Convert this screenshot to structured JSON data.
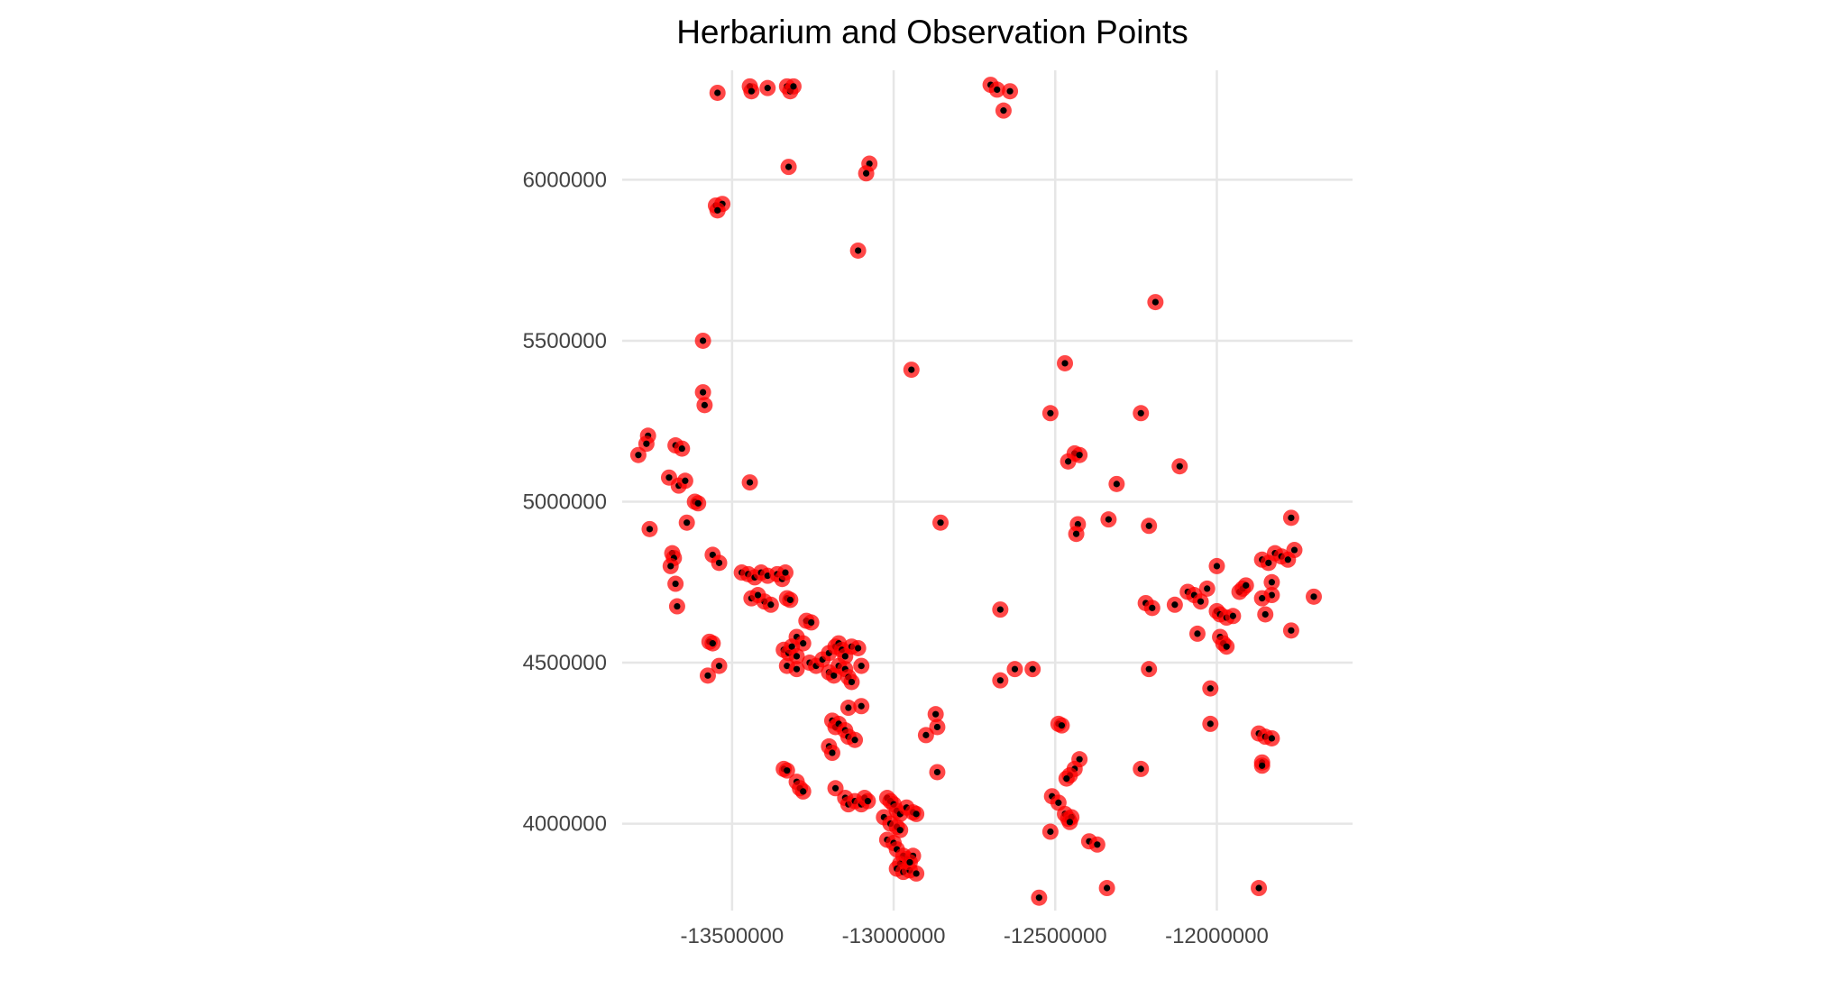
{
  "chart_data": {
    "type": "scatter",
    "title": "Herbarium and Observation Points",
    "xlabel": "",
    "ylabel": "",
    "xlim": [
      -13840000,
      -11580000
    ],
    "ylim": [
      3730000,
      6340000
    ],
    "x_ticks": [
      -13500000,
      -13000000,
      -12500000,
      -12000000
    ],
    "y_ticks": [
      4000000,
      4500000,
      5000000,
      5500000,
      6000000
    ],
    "x_tick_labels": [
      "-13500000",
      "-13000000",
      "-12500000",
      "-12000000"
    ],
    "y_tick_labels": [
      "4000000",
      "4500000",
      "5000000",
      "5500000",
      "6000000"
    ],
    "grid": true,
    "legend": "none",
    "colors": {
      "outer": "#ff0000",
      "inner": "#000000",
      "grid": "#e6e6e6"
    },
    "points": [
      [
        -13545000,
        6270000
      ],
      [
        -13445000,
        6290000
      ],
      [
        -13440000,
        6275000
      ],
      [
        -13390000,
        6285000
      ],
      [
        -13330000,
        6290000
      ],
      [
        -13320000,
        6275000
      ],
      [
        -13310000,
        6290000
      ],
      [
        -13325000,
        6040000
      ],
      [
        -12700000,
        6295000
      ],
      [
        -12680000,
        6280000
      ],
      [
        -12640000,
        6275000
      ],
      [
        -12660000,
        6215000
      ],
      [
        -13075000,
        6050000
      ],
      [
        -13085000,
        6020000
      ],
      [
        -13550000,
        5920000
      ],
      [
        -13530000,
        5925000
      ],
      [
        -13545000,
        5905000
      ],
      [
        -13110000,
        5780000
      ],
      [
        -12190000,
        5620000
      ],
      [
        -13590000,
        5500000
      ],
      [
        -12945000,
        5410000
      ],
      [
        -12470000,
        5430000
      ],
      [
        -13590000,
        5340000
      ],
      [
        -13585000,
        5300000
      ],
      [
        -12515000,
        5275000
      ],
      [
        -12235000,
        5275000
      ],
      [
        -13760000,
        5205000
      ],
      [
        -13765000,
        5180000
      ],
      [
        -13790000,
        5145000
      ],
      [
        -13675000,
        5175000
      ],
      [
        -13655000,
        5165000
      ],
      [
        -12440000,
        5150000
      ],
      [
        -12425000,
        5145000
      ],
      [
        -12460000,
        5125000
      ],
      [
        -12115000,
        5110000
      ],
      [
        -13695000,
        5075000
      ],
      [
        -13665000,
        5050000
      ],
      [
        -13645000,
        5065000
      ],
      [
        -13445000,
        5060000
      ],
      [
        -12310000,
        5055000
      ],
      [
        -13615000,
        5000000
      ],
      [
        -13605000,
        4995000
      ],
      [
        -12335000,
        4945000
      ],
      [
        -13640000,
        4935000
      ],
      [
        -13755000,
        4915000
      ],
      [
        -12855000,
        4935000
      ],
      [
        -12430000,
        4930000
      ],
      [
        -12435000,
        4900000
      ],
      [
        -12210000,
        4925000
      ],
      [
        -13685000,
        4840000
      ],
      [
        -13680000,
        4825000
      ],
      [
        -13690000,
        4800000
      ],
      [
        -13560000,
        4835000
      ],
      [
        -13540000,
        4810000
      ],
      [
        -13470000,
        4780000
      ],
      [
        -13450000,
        4775000
      ],
      [
        -13430000,
        4765000
      ],
      [
        -13410000,
        4780000
      ],
      [
        -13390000,
        4770000
      ],
      [
        -13360000,
        4775000
      ],
      [
        -13345000,
        4760000
      ],
      [
        -13335000,
        4780000
      ],
      [
        -13440000,
        4700000
      ],
      [
        -13400000,
        4690000
      ],
      [
        -13420000,
        4710000
      ],
      [
        -13380000,
        4680000
      ],
      [
        -13330000,
        4700000
      ],
      [
        -13320000,
        4695000
      ],
      [
        -13675000,
        4745000
      ],
      [
        -13670000,
        4675000
      ],
      [
        -13270000,
        4630000
      ],
      [
        -13255000,
        4625000
      ],
      [
        -13300000,
        4580000
      ],
      [
        -13280000,
        4560000
      ],
      [
        -13340000,
        4540000
      ],
      [
        -13325000,
        4530000
      ],
      [
        -13315000,
        4550000
      ],
      [
        -13300000,
        4520000
      ],
      [
        -13260000,
        4500000
      ],
      [
        -13240000,
        4490000
      ],
      [
        -13220000,
        4510000
      ],
      [
        -13200000,
        4530000
      ],
      [
        -13180000,
        4550000
      ],
      [
        -13170000,
        4560000
      ],
      [
        -13160000,
        4540000
      ],
      [
        -13150000,
        4520000
      ],
      [
        -13130000,
        4550000
      ],
      [
        -13110000,
        4545000
      ],
      [
        -13100000,
        4490000
      ],
      [
        -13200000,
        4470000
      ],
      [
        -13185000,
        4460000
      ],
      [
        -13170000,
        4490000
      ],
      [
        -13150000,
        4480000
      ],
      [
        -13140000,
        4455000
      ],
      [
        -13130000,
        4440000
      ],
      [
        -13570000,
        4565000
      ],
      [
        -13560000,
        4560000
      ],
      [
        -13575000,
        4460000
      ],
      [
        -13540000,
        4490000
      ],
      [
        -13330000,
        4490000
      ],
      [
        -13300000,
        4480000
      ],
      [
        -13140000,
        4360000
      ],
      [
        -13100000,
        4365000
      ],
      [
        -13190000,
        4320000
      ],
      [
        -13180000,
        4300000
      ],
      [
        -13170000,
        4310000
      ],
      [
        -13150000,
        4290000
      ],
      [
        -13140000,
        4270000
      ],
      [
        -13120000,
        4260000
      ],
      [
        -13200000,
        4240000
      ],
      [
        -13190000,
        4220000
      ],
      [
        -12870000,
        4340000
      ],
      [
        -12865000,
        4300000
      ],
      [
        -12900000,
        4275000
      ],
      [
        -12865000,
        4160000
      ],
      [
        -12670000,
        4665000
      ],
      [
        -12670000,
        4445000
      ],
      [
        -12625000,
        4480000
      ],
      [
        -12570000,
        4480000
      ],
      [
        -12490000,
        4310000
      ],
      [
        -12480000,
        4305000
      ],
      [
        -12425000,
        4200000
      ],
      [
        -12440000,
        4170000
      ],
      [
        -12455000,
        4150000
      ],
      [
        -12465000,
        4140000
      ],
      [
        -12510000,
        4085000
      ],
      [
        -12490000,
        4065000
      ],
      [
        -12470000,
        4030000
      ],
      [
        -12460000,
        4015000
      ],
      [
        -12450000,
        4020000
      ],
      [
        -12455000,
        4005000
      ],
      [
        -12515000,
        3975000
      ],
      [
        -12395000,
        3945000
      ],
      [
        -12370000,
        3935000
      ],
      [
        -12340000,
        3800000
      ],
      [
        -12550000,
        3770000
      ],
      [
        -12235000,
        4170000
      ],
      [
        -12210000,
        4480000
      ],
      [
        -12220000,
        4685000
      ],
      [
        -12200000,
        4670000
      ],
      [
        -12130000,
        4680000
      ],
      [
        -12090000,
        4720000
      ],
      [
        -12070000,
        4710000
      ],
      [
        -12050000,
        4690000
      ],
      [
        -12030000,
        4730000
      ],
      [
        -12000000,
        4800000
      ],
      [
        -12000000,
        4660000
      ],
      [
        -11990000,
        4650000
      ],
      [
        -11970000,
        4640000
      ],
      [
        -11950000,
        4645000
      ],
      [
        -11930000,
        4720000
      ],
      [
        -11920000,
        4730000
      ],
      [
        -11910000,
        4740000
      ],
      [
        -11990000,
        4580000
      ],
      [
        -11980000,
        4560000
      ],
      [
        -11970000,
        4550000
      ],
      [
        -12060000,
        4590000
      ],
      [
        -12020000,
        4420000
      ],
      [
        -12020000,
        4310000
      ],
      [
        -11860000,
        4820000
      ],
      [
        -11840000,
        4810000
      ],
      [
        -11820000,
        4840000
      ],
      [
        -11800000,
        4830000
      ],
      [
        -11780000,
        4820000
      ],
      [
        -11760000,
        4850000
      ],
      [
        -11770000,
        4950000
      ],
      [
        -11830000,
        4750000
      ],
      [
        -11830000,
        4710000
      ],
      [
        -11860000,
        4700000
      ],
      [
        -11850000,
        4650000
      ],
      [
        -11770000,
        4600000
      ],
      [
        -11700000,
        4705000
      ],
      [
        -11870000,
        4280000
      ],
      [
        -11850000,
        4270000
      ],
      [
        -11830000,
        4265000
      ],
      [
        -11860000,
        4190000
      ],
      [
        -11860000,
        4180000
      ],
      [
        -11870000,
        3800000
      ],
      [
        -13340000,
        4170000
      ],
      [
        -13330000,
        4165000
      ],
      [
        -13300000,
        4130000
      ],
      [
        -13290000,
        4110000
      ],
      [
        -13280000,
        4100000
      ],
      [
        -13180000,
        4110000
      ],
      [
        -13150000,
        4080000
      ],
      [
        -13140000,
        4060000
      ],
      [
        -13120000,
        4070000
      ],
      [
        -13100000,
        4060000
      ],
      [
        -13090000,
        4080000
      ],
      [
        -13080000,
        4070000
      ],
      [
        -13020000,
        4080000
      ],
      [
        -13010000,
        4070000
      ],
      [
        -13000000,
        4060000
      ],
      [
        -12990000,
        4040000
      ],
      [
        -12980000,
        4030000
      ],
      [
        -12960000,
        4050000
      ],
      [
        -12940000,
        4035000
      ],
      [
        -12930000,
        4030000
      ],
      [
        -13030000,
        4020000
      ],
      [
        -13010000,
        4000000
      ],
      [
        -12990000,
        3990000
      ],
      [
        -12980000,
        3980000
      ],
      [
        -13020000,
        3950000
      ],
      [
        -13000000,
        3940000
      ],
      [
        -12990000,
        3920000
      ],
      [
        -12970000,
        3900000
      ],
      [
        -12960000,
        3890000
      ],
      [
        -12980000,
        3875000
      ],
      [
        -12990000,
        3860000
      ],
      [
        -12970000,
        3850000
      ],
      [
        -12950000,
        3855000
      ],
      [
        -12930000,
        3845000
      ],
      [
        -12940000,
        3900000
      ],
      [
        -12950000,
        3880000
      ]
    ]
  }
}
